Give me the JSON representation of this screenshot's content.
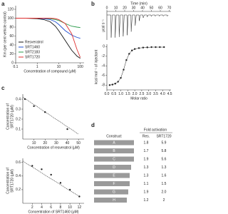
{
  "chart_data": [
    {
      "type": "line",
      "panel": "a",
      "xlabel": "Concentration of compound (μM)",
      "ylabel": "Km (per cent vehicle control)",
      "xlog": true,
      "x": [
        0.1,
        0.3,
        1,
        2,
        4,
        7,
        10,
        20,
        40,
        70,
        100
      ],
      "series": [
        {
          "name": "Resveratrol",
          "color": "#111111",
          "values": [
            100,
            100,
            99,
            97,
            92,
            82,
            72,
            50,
            28,
            15,
            10
          ]
        },
        {
          "name": "SRT1460",
          "color": "#1f4fd0",
          "values": [
            100,
            100,
            100,
            99,
            97,
            92,
            86,
            72,
            62,
            57,
            55
          ]
        },
        {
          "name": "SRT2183",
          "color": "#2a9a4a",
          "values": [
            100,
            100,
            100,
            100,
            99,
            97,
            95,
            88,
            82,
            80,
            79
          ]
        },
        {
          "name": "SRT1720",
          "color": "#e03030",
          "values": [
            100,
            100,
            100,
            100,
            100,
            99,
            97,
            88,
            65,
            30,
            12
          ]
        }
      ],
      "xlim": [
        0.1,
        150
      ],
      "ylim": [
        0,
        128
      ],
      "xticks": [
        0.1,
        1,
        10,
        100
      ],
      "yticks": [
        0,
        20,
        40,
        60,
        80,
        100,
        120
      ],
      "legend": "lower left"
    },
    {
      "type": "line",
      "panel": "b",
      "xlabel": "Time (min)",
      "ylabel": "μcal s⁻¹",
      "color": "#222222",
      "xaxis": "top",
      "x": [
        0,
        4.5,
        4.8,
        6,
        9,
        9.3,
        10.5,
        13.5,
        13.8,
        15,
        18,
        18.3,
        19.5,
        22.5,
        22.8,
        24,
        27,
        27.3,
        28.5,
        31.5,
        31.8,
        33,
        36,
        36.3,
        37.5,
        40.5,
        40.8,
        42,
        45,
        45.3,
        46.5,
        49.5,
        49.8,
        51,
        54,
        54.3,
        55.5,
        58.5,
        58.8,
        60,
        63,
        63.3,
        64.5,
        67.5,
        67.8,
        69
      ],
      "values": [
        0,
        0,
        -0.95,
        0,
        0,
        -0.95,
        0,
        0,
        -0.93,
        0,
        0,
        -0.9,
        0,
        0,
        -0.85,
        0,
        0,
        -0.7,
        0,
        0,
        -0.45,
        0,
        0,
        -0.25,
        0,
        0,
        -0.12,
        0,
        0,
        -0.08,
        0,
        0,
        -0.06,
        0,
        0,
        -0.05,
        0,
        0,
        -0.05,
        0,
        0,
        -0.05,
        0,
        0,
        -0.05,
        0
      ],
      "xlim": [
        0,
        72
      ],
      "ylim": [
        -1.05,
        0.15
      ],
      "xticks": [
        0,
        10,
        20,
        30,
        40,
        50,
        60,
        70
      ]
    },
    {
      "type": "scatter",
      "ylabel": "kcal mol⁻¹ of injectant",
      "xlabel": "Molar ratio",
      "color": "#222222",
      "line": true,
      "x": [
        0.2,
        0.4,
        0.6,
        0.8,
        1.0,
        1.2,
        1.4,
        1.6,
        1.8,
        2.0,
        2.3,
        2.6,
        2.9,
        3.2,
        3.5,
        3.8,
        4.1
      ],
      "values": [
        -8,
        -7.9,
        -7.7,
        -7.3,
        -6.5,
        -4.8,
        -2.8,
        -1.5,
        -0.8,
        -0.5,
        -0.3,
        -0.2,
        -0.15,
        -0.1,
        -0.1,
        -0.1,
        -0.1
      ],
      "xlim": [
        0,
        4.6
      ],
      "ylim": [
        -9,
        0.5
      ],
      "xticks": [
        {
          "value": 0,
          "label": "0.0"
        },
        0.5,
        {
          "value": 1,
          "label": "1.0"
        },
        1.5,
        {
          "value": 2,
          "label": "2.0"
        },
        2.5,
        {
          "value": 3,
          "label": "3.0"
        },
        3.5,
        {
          "value": 4,
          "label": "4.0"
        },
        4.5
      ],
      "yticks": [
        -8,
        -6,
        -4,
        -2,
        0
      ]
    },
    {
      "type": "scatter",
      "panel": "c",
      "xlabel": "Concentration of resveratrol (μM)",
      "ylabel": [
        "Concentration of",
        "SRT1720 (μM)"
      ],
      "color": "#222222",
      "x": [
        2,
        10,
        20,
        40
      ],
      "values": [
        0.4,
        0.33,
        0.27,
        0.1
      ],
      "fit_x": [
        0,
        50
      ],
      "fit_values": [
        0.42,
        0.05
      ],
      "xlim": [
        0,
        55
      ],
      "ylim": [
        0,
        0.45
      ],
      "xticks": [
        10,
        20,
        30,
        40,
        50
      ],
      "yticks": [
        0.1,
        0.2,
        0.3,
        0.4
      ]
    },
    {
      "type": "scatter",
      "xlabel": "Concentration of SRT1460 (μM)",
      "ylabel": [
        "Concentration of",
        "SRT1720 (μM)"
      ],
      "color": "#222222",
      "x": [
        2,
        4,
        6,
        8,
        10,
        12
      ],
      "values": [
        0.55,
        0.5,
        0.42,
        0.3,
        0.2,
        0.1
      ],
      "fit_x": [
        0,
        12
      ],
      "fit_values": [
        0.62,
        0.1
      ],
      "xlim": [
        0,
        13
      ],
      "ylim": [
        0,
        0.66
      ],
      "xticks": [
        2,
        4,
        6,
        8,
        10,
        12
      ],
      "yticks": [
        0.2,
        0.4,
        0.6
      ]
    }
  ],
  "table": {
    "panel": "d",
    "headers": [
      "Construct",
      "Fold activation"
    ],
    "subheaders": [
      "Res.",
      "SRT1720"
    ],
    "rows": [
      [
        "A",
        "1.8",
        "5.9"
      ],
      [
        "B",
        "1.7",
        "5.8"
      ],
      [
        "C",
        "1.9",
        "5.6"
      ],
      [
        "D",
        "1.3",
        "1.3"
      ],
      [
        "E",
        "1.3",
        "1.6"
      ],
      [
        "F",
        "1.1",
        "1.5"
      ],
      [
        "G",
        "1.9",
        "2.0"
      ],
      [
        "H",
        "1.2",
        "2"
      ]
    ]
  }
}
